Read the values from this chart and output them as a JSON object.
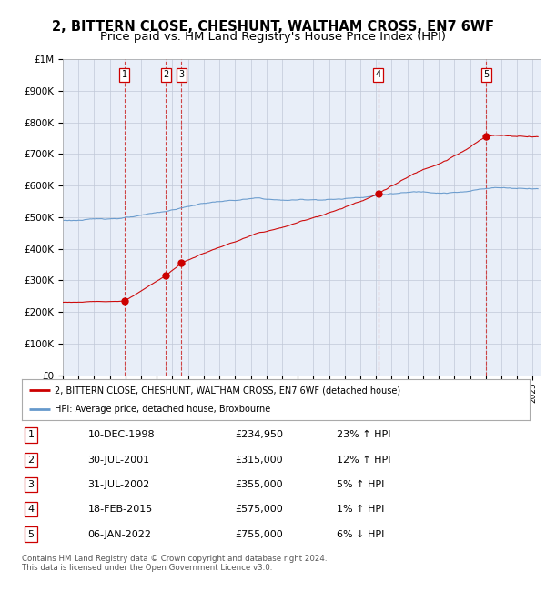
{
  "title": "2, BITTERN CLOSE, CHESHUNT, WALTHAM CROSS, EN7 6WF",
  "subtitle": "Price paid vs. HM Land Registry's House Price Index (HPI)",
  "ylim": [
    0,
    1000000
  ],
  "yticks": [
    0,
    100000,
    200000,
    300000,
    400000,
    500000,
    600000,
    700000,
    800000,
    900000,
    1000000
  ],
  "ytick_labels": [
    "£0",
    "£100K",
    "£200K",
    "£300K",
    "£400K",
    "£500K",
    "£600K",
    "£700K",
    "£800K",
    "£900K",
    "£1M"
  ],
  "xlim_start": 1995.0,
  "xlim_end": 2025.5,
  "sale_dates": [
    1998.94,
    2001.58,
    2002.58,
    2015.13,
    2022.03
  ],
  "sale_prices": [
    234950,
    315000,
    355000,
    575000,
    755000
  ],
  "sale_labels": [
    "1",
    "2",
    "3",
    "4",
    "5"
  ],
  "sale_color": "#cc0000",
  "hpi_color": "#6699cc",
  "vline_color": "#cc3333",
  "chart_bg": "#e8eef8",
  "background_color": "#ffffff",
  "grid_color": "#c0c8d8",
  "legend_label_red": "2, BITTERN CLOSE, CHESHUNT, WALTHAM CROSS, EN7 6WF (detached house)",
  "legend_label_blue": "HPI: Average price, detached house, Broxbourne",
  "table_data": [
    [
      "1",
      "10-DEC-1998",
      "£234,950",
      "23% ↑ HPI"
    ],
    [
      "2",
      "30-JUL-2001",
      "£315,000",
      "12% ↑ HPI"
    ],
    [
      "3",
      "31-JUL-2002",
      "£355,000",
      "5% ↑ HPI"
    ],
    [
      "4",
      "18-FEB-2015",
      "£575,000",
      "1% ↑ HPI"
    ],
    [
      "5",
      "06-JAN-2022",
      "£755,000",
      "6% ↓ HPI"
    ]
  ],
  "footnote": "Contains HM Land Registry data © Crown copyright and database right 2024.\nThis data is licensed under the Open Government Licence v3.0.",
  "title_fontsize": 10.5,
  "subtitle_fontsize": 9.5
}
